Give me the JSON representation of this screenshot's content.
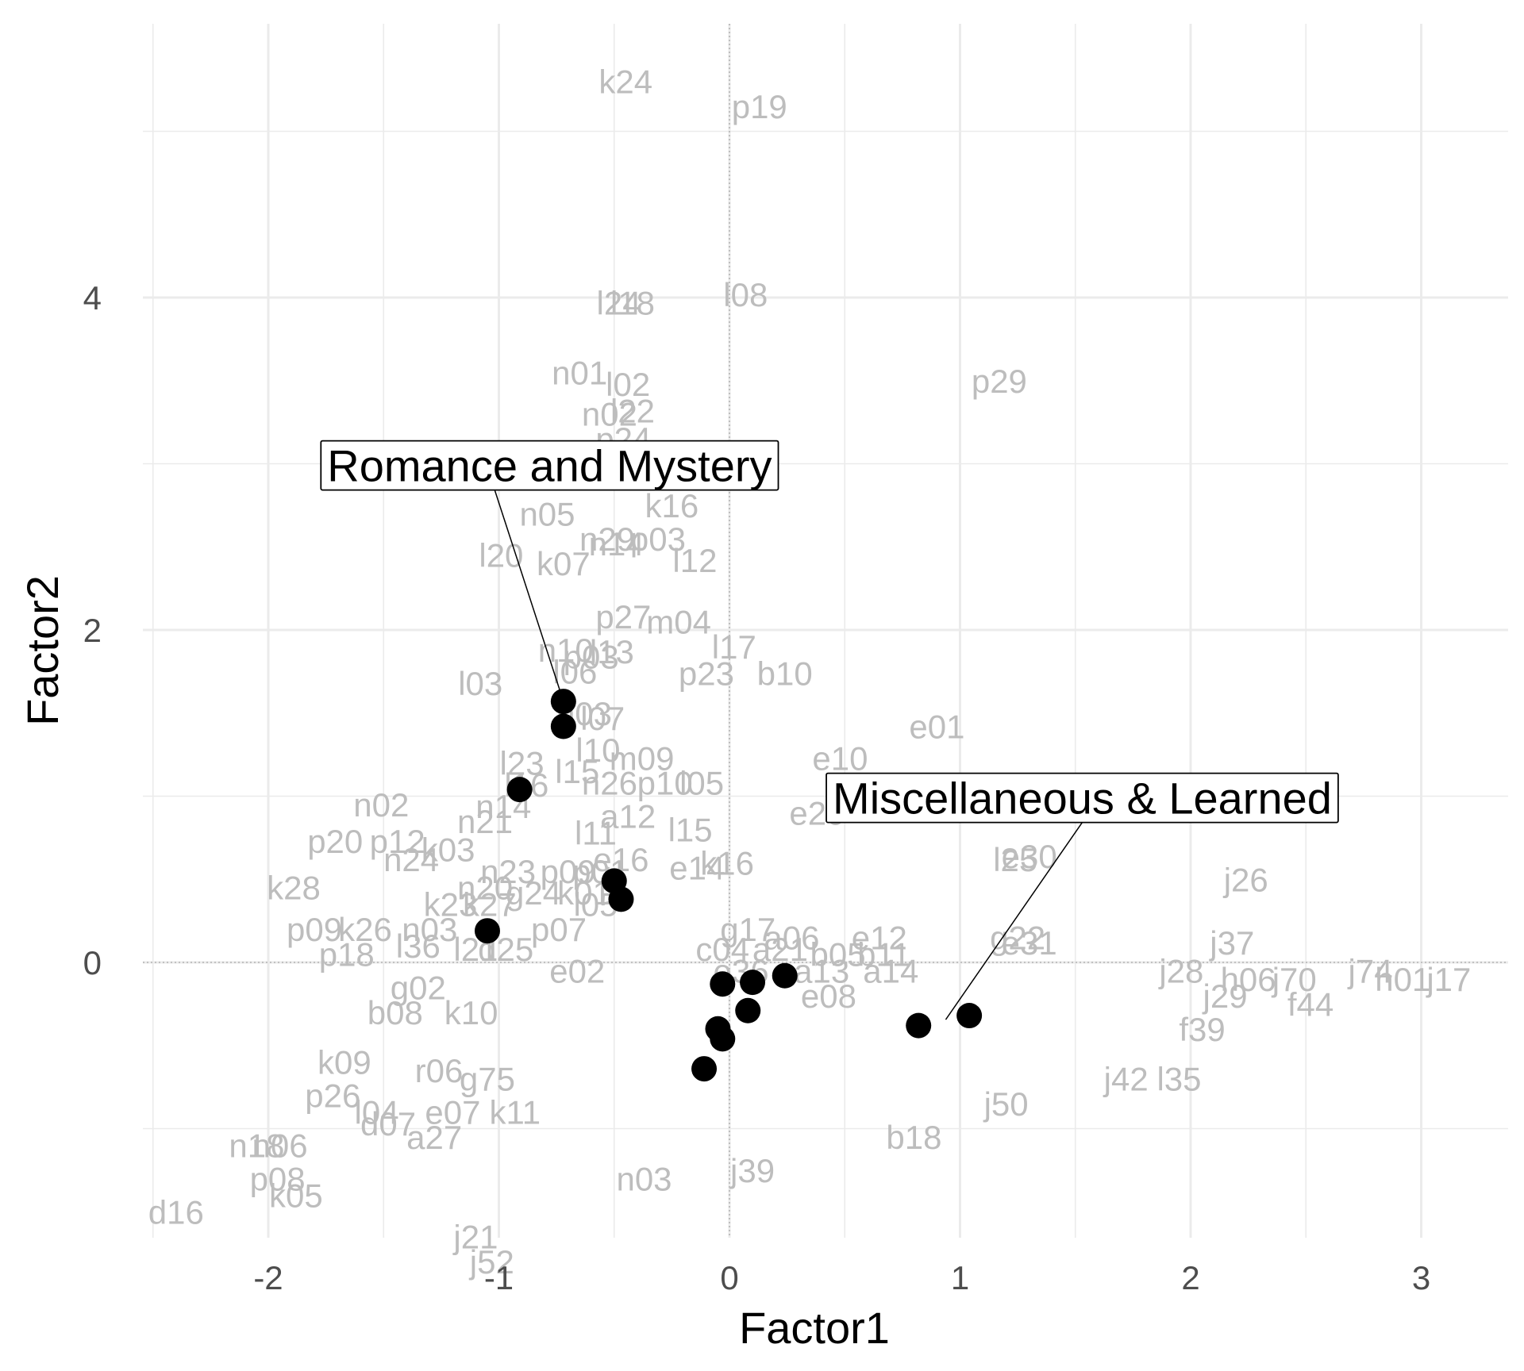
{
  "chart_data": {
    "type": "scatter",
    "title": "",
    "xlabel": "Factor1",
    "ylabel": "Factor2",
    "xlim": [
      -2.5,
      3.35
    ],
    "ylim": [
      -1.65,
      5.5
    ],
    "x_ticks": [
      -2,
      -1,
      0,
      1,
      2,
      3
    ],
    "y_ticks": [
      0,
      2,
      4
    ],
    "x_tick_labels": [
      "-2",
      "-1",
      "0",
      "1",
      "2",
      "3"
    ],
    "y_tick_labels": [
      "0",
      "2",
      "4"
    ],
    "reference_lines": {
      "x": 0,
      "y": 0,
      "style": "dotted"
    },
    "grid": true,
    "label_color": "#bdbdbd",
    "highlight_color": "#000000",
    "labeled_points": [
      {
        "label": "k24",
        "x": -0.45,
        "y": 5.3
      },
      {
        "label": "p19",
        "x": 0.13,
        "y": 5.15
      },
      {
        "label": "l24",
        "x": -0.48,
        "y": 3.97
      },
      {
        "label": "l18",
        "x": -0.42,
        "y": 3.97
      },
      {
        "label": "l08",
        "x": 0.07,
        "y": 4.02
      },
      {
        "label": "n01",
        "x": -0.65,
        "y": 3.55
      },
      {
        "label": "l02",
        "x": -0.44,
        "y": 3.48
      },
      {
        "label": "p29",
        "x": 1.17,
        "y": 3.5
      },
      {
        "label": "n02",
        "x": -0.52,
        "y": 3.3
      },
      {
        "label": "l22",
        "x": -0.42,
        "y": 3.32
      },
      {
        "label": "p24",
        "x": -0.46,
        "y": 3.15
      },
      {
        "label": "n05",
        "x": -0.79,
        "y": 2.7
      },
      {
        "label": "k16",
        "x": -0.25,
        "y": 2.75
      },
      {
        "label": "l20",
        "x": -0.99,
        "y": 2.45
      },
      {
        "label": "n29",
        "x": -0.53,
        "y": 2.55
      },
      {
        "label": "n14",
        "x": -0.49,
        "y": 2.52
      },
      {
        "label": "p03",
        "x": -0.31,
        "y": 2.55
      },
      {
        "label": "k07",
        "x": -0.72,
        "y": 2.4
      },
      {
        "label": "l12",
        "x": -0.15,
        "y": 2.42
      },
      {
        "label": "p27",
        "x": -0.46,
        "y": 2.08
      },
      {
        "label": "m04",
        "x": -0.22,
        "y": 2.05
      },
      {
        "label": "l17",
        "x": 0.02,
        "y": 1.9
      },
      {
        "label": "n10",
        "x": -0.71,
        "y": 1.88
      },
      {
        "label": "l13",
        "x": -0.51,
        "y": 1.87
      },
      {
        "label": "p03",
        "x": -0.6,
        "y": 1.84
      },
      {
        "label": "l03",
        "x": -1.08,
        "y": 1.68
      },
      {
        "label": "l06",
        "x": -0.67,
        "y": 1.75
      },
      {
        "label": "p23",
        "x": -0.1,
        "y": 1.74
      },
      {
        "label": "b10",
        "x": 0.24,
        "y": 1.74
      },
      {
        "label": "n03",
        "x": -0.63,
        "y": 1.5
      },
      {
        "label": "l07",
        "x": -0.55,
        "y": 1.47
      },
      {
        "label": "e01",
        "x": 0.9,
        "y": 1.42
      },
      {
        "label": "l10",
        "x": -0.57,
        "y": 1.28
      },
      {
        "label": "m09",
        "x": -0.38,
        "y": 1.23
      },
      {
        "label": "e10",
        "x": 0.48,
        "y": 1.23
      },
      {
        "label": "l23",
        "x": -0.9,
        "y": 1.2
      },
      {
        "label": "l15",
        "x": -0.66,
        "y": 1.15
      },
      {
        "label": "l16",
        "x": -0.88,
        "y": 1.07
      },
      {
        "label": "n26",
        "x": -0.52,
        "y": 1.08
      },
      {
        "label": "p10",
        "x": -0.28,
        "y": 1.08
      },
      {
        "label": "l05",
        "x": -0.12,
        "y": 1.08
      },
      {
        "label": "n02",
        "x": -1.51,
        "y": 0.95
      },
      {
        "label": "n14",
        "x": -0.98,
        "y": 0.94
      },
      {
        "label": "a12",
        "x": -0.44,
        "y": 0.88
      },
      {
        "label": "e20",
        "x": 0.38,
        "y": 0.9
      },
      {
        "label": "p20",
        "x": -1.71,
        "y": 0.73
      },
      {
        "label": "p12",
        "x": -1.44,
        "y": 0.73
      },
      {
        "label": "n21",
        "x": -1.06,
        "y": 0.85
      },
      {
        "label": "l11",
        "x": -0.58,
        "y": 0.78
      },
      {
        "label": "l15",
        "x": -0.17,
        "y": 0.8
      },
      {
        "label": "k03",
        "x": -1.22,
        "y": 0.68
      },
      {
        "label": "n24",
        "x": -1.38,
        "y": 0.62
      },
      {
        "label": "e16",
        "x": -0.47,
        "y": 0.62
      },
      {
        "label": "e14",
        "x": -0.14,
        "y": 0.57
      },
      {
        "label": "k16",
        "x": -0.01,
        "y": 0.6
      },
      {
        "label": "l25",
        "x": 1.24,
        "y": 0.62
      },
      {
        "label": "e30",
        "x": 1.3,
        "y": 0.64
      },
      {
        "label": "n23",
        "x": -0.96,
        "y": 0.55
      },
      {
        "label": "p09",
        "x": -0.7,
        "y": 0.55
      },
      {
        "label": "p01",
        "x": -0.56,
        "y": 0.55
      },
      {
        "label": "j26",
        "x": 2.24,
        "y": 0.5
      },
      {
        "label": "k28",
        "x": -1.89,
        "y": 0.45
      },
      {
        "label": "n20",
        "x": -1.06,
        "y": 0.45
      },
      {
        "label": "g24",
        "x": -0.85,
        "y": 0.42
      },
      {
        "label": "k01",
        "x": -0.63,
        "y": 0.42
      },
      {
        "label": "k23",
        "x": -1.21,
        "y": 0.35
      },
      {
        "label": "k27",
        "x": -1.04,
        "y": 0.35
      },
      {
        "label": "l05",
        "x": -0.58,
        "y": 0.35
      },
      {
        "label": "p09",
        "x": -1.8,
        "y": 0.2
      },
      {
        "label": "k26",
        "x": -1.58,
        "y": 0.2
      },
      {
        "label": "n03",
        "x": -1.3,
        "y": 0.2
      },
      {
        "label": "p07",
        "x": -0.74,
        "y": 0.2
      },
      {
        "label": "g17",
        "x": 0.08,
        "y": 0.2
      },
      {
        "label": "a06",
        "x": 0.27,
        "y": 0.15
      },
      {
        "label": "e12",
        "x": 0.65,
        "y": 0.15
      },
      {
        "label": "g22",
        "x": 1.25,
        "y": 0.15
      },
      {
        "label": "e31",
        "x": 1.3,
        "y": 0.12
      },
      {
        "label": "j37",
        "x": 2.18,
        "y": 0.12
      },
      {
        "label": "p18",
        "x": -1.66,
        "y": 0.05
      },
      {
        "label": "l36",
        "x": -1.35,
        "y": 0.1
      },
      {
        "label": "l21",
        "x": -1.1,
        "y": 0.08
      },
      {
        "label": "d25",
        "x": -0.97,
        "y": 0.08
      },
      {
        "label": "c04",
        "x": -0.03,
        "y": 0.08
      },
      {
        "label": "a21",
        "x": 0.22,
        "y": 0.08
      },
      {
        "label": "b05",
        "x": 0.47,
        "y": 0.05
      },
      {
        "label": "b11",
        "x": 0.67,
        "y": 0.05
      },
      {
        "label": "e02",
        "x": -0.66,
        "y": -0.05
      },
      {
        "label": "a13",
        "x": 0.4,
        "y": -0.05
      },
      {
        "label": "a14",
        "x": 0.7,
        "y": -0.05
      },
      {
        "label": "e36",
        "x": 0.05,
        "y": -0.05
      },
      {
        "label": "j28",
        "x": 1.96,
        "y": -0.05
      },
      {
        "label": "h06",
        "x": 2.25,
        "y": -0.1
      },
      {
        "label": "j70",
        "x": 2.45,
        "y": -0.1
      },
      {
        "label": "j74",
        "x": 2.78,
        "y": -0.05
      },
      {
        "label": "h01",
        "x": 2.92,
        "y": -0.1
      },
      {
        "label": "j17",
        "x": 3.12,
        "y": -0.1
      },
      {
        "label": "g02",
        "x": -1.35,
        "y": -0.15
      },
      {
        "label": "j29",
        "x": 2.15,
        "y": -0.2
      },
      {
        "label": "e08",
        "x": 0.43,
        "y": -0.2
      },
      {
        "label": "f44",
        "x": 2.52,
        "y": -0.25
      },
      {
        "label": "b08",
        "x": -1.45,
        "y": -0.3
      },
      {
        "label": "k10",
        "x": -1.12,
        "y": -0.3
      },
      {
        "label": "f39",
        "x": 2.05,
        "y": -0.4
      },
      {
        "label": "k09",
        "x": -1.67,
        "y": -0.6
      },
      {
        "label": "r06",
        "x": -1.26,
        "y": -0.65
      },
      {
        "label": "g75",
        "x": -1.05,
        "y": -0.7
      },
      {
        "label": "p26",
        "x": -1.72,
        "y": -0.8
      },
      {
        "label": "j42",
        "x": 1.72,
        "y": -0.7
      },
      {
        "label": "l35",
        "x": 1.95,
        "y": -0.7
      },
      {
        "label": "j50",
        "x": 1.2,
        "y": -0.85
      },
      {
        "label": "l04",
        "x": -1.53,
        "y": -0.9
      },
      {
        "label": "e07",
        "x": -1.2,
        "y": -0.9
      },
      {
        "label": "k11",
        "x": -0.93,
        "y": -0.9
      },
      {
        "label": "d07",
        "x": -1.48,
        "y": -0.97
      },
      {
        "label": "n18",
        "x": -2.05,
        "y": -1.1
      },
      {
        "label": "n06",
        "x": -1.95,
        "y": -1.1
      },
      {
        "label": "a27",
        "x": -1.28,
        "y": -1.05
      },
      {
        "label": "b18",
        "x": 0.8,
        "y": -1.05
      },
      {
        "label": "p08",
        "x": -1.96,
        "y": -1.3
      },
      {
        "label": "k05",
        "x": -1.88,
        "y": -1.4
      },
      {
        "label": "n03",
        "x": -0.37,
        "y": -1.3
      },
      {
        "label": "j39",
        "x": 0.1,
        "y": -1.25
      },
      {
        "label": "d16",
        "x": -2.4,
        "y": -1.5
      },
      {
        "label": "j21",
        "x": -1.1,
        "y": -1.65
      },
      {
        "label": "j52",
        "x": -1.03,
        "y": -1.8
      }
    ],
    "highlighted_points": [
      {
        "x": -0.72,
        "y": 1.57
      },
      {
        "x": -0.72,
        "y": 1.42
      },
      {
        "x": -0.91,
        "y": 1.04
      },
      {
        "x": -0.5,
        "y": 0.49
      },
      {
        "x": -0.47,
        "y": 0.38
      },
      {
        "x": -1.05,
        "y": 0.19
      },
      {
        "x": -0.03,
        "y": -0.13
      },
      {
        "x": 0.1,
        "y": -0.12
      },
      {
        "x": 0.24,
        "y": -0.08
      },
      {
        "x": 0.08,
        "y": -0.29
      },
      {
        "x": -0.05,
        "y": -0.4
      },
      {
        "x": -0.03,
        "y": -0.46
      },
      {
        "x": -0.11,
        "y": -0.64
      },
      {
        "x": 0.82,
        "y": -0.38
      },
      {
        "x": 1.04,
        "y": -0.32
      }
    ],
    "annotations": [
      {
        "text": "Romance and Mystery",
        "x": -0.78,
        "y": 2.99,
        "target_x": -0.72,
        "target_y": 1.57
      },
      {
        "text": "Miscellaneous & Learned",
        "x": 1.53,
        "y": 0.99,
        "target_x": 0.93,
        "target_y": -0.36
      }
    ]
  }
}
